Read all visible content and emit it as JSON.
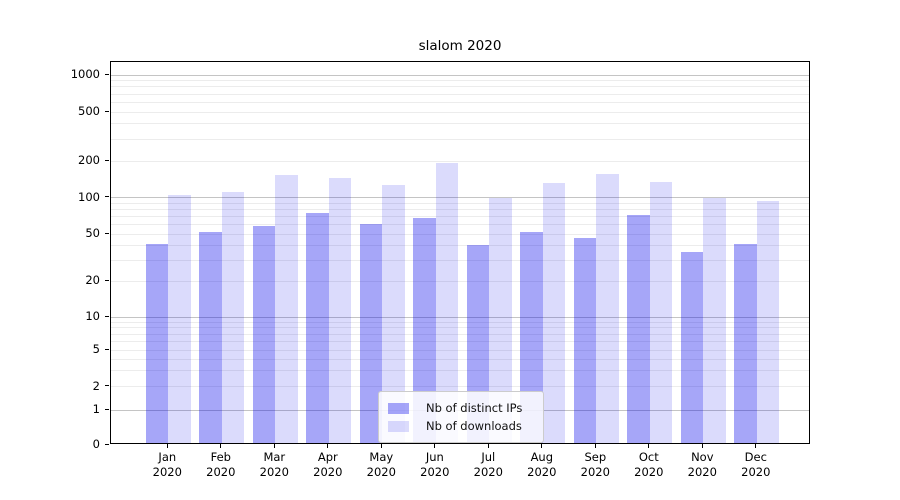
{
  "chart_data": {
    "type": "bar",
    "title": "slalom 2020",
    "categories": [
      "Jan 2020",
      "Feb 2020",
      "Mar 2020",
      "Apr 2020",
      "May 2020",
      "Jun 2020",
      "Jul 2020",
      "Aug 2020",
      "Sep 2020",
      "Oct 2020",
      "Nov 2020",
      "Dec 2020"
    ],
    "series": [
      {
        "name": "Nb of distinct IPs",
        "color": "rgba(0,0,235,0.35)",
        "values": [
          40,
          50,
          56,
          72,
          59,
          65,
          39,
          50,
          45,
          69,
          34,
          40
        ]
      },
      {
        "name": "Nb of downloads",
        "color": "rgba(0,0,235,0.14)",
        "values": [
          102,
          108,
          148,
          139,
          122,
          185,
          95,
          127,
          150,
          130,
          95,
          90
        ]
      }
    ],
    "xlabel": "",
    "ylabel": "",
    "yscale": "log-like (symlog with linear region near 0)",
    "yticks": [
      0,
      1,
      2,
      5,
      10,
      20,
      50,
      100,
      200,
      500,
      1000
    ],
    "ylim": [
      0,
      1280
    ],
    "grid": "both (major + minor horizontal gridlines)",
    "legend_position": "lower center"
  },
  "colors": {
    "bar_distinct_ips": "rgba(0,0,235,0.35)",
    "bar_downloads": "rgba(0,0,235,0.14)",
    "grid_major": "#c4c4c4",
    "grid_minor": "#ececec",
    "spine": "#000000",
    "background": "#ffffff",
    "legend_border": "#cccccc"
  }
}
